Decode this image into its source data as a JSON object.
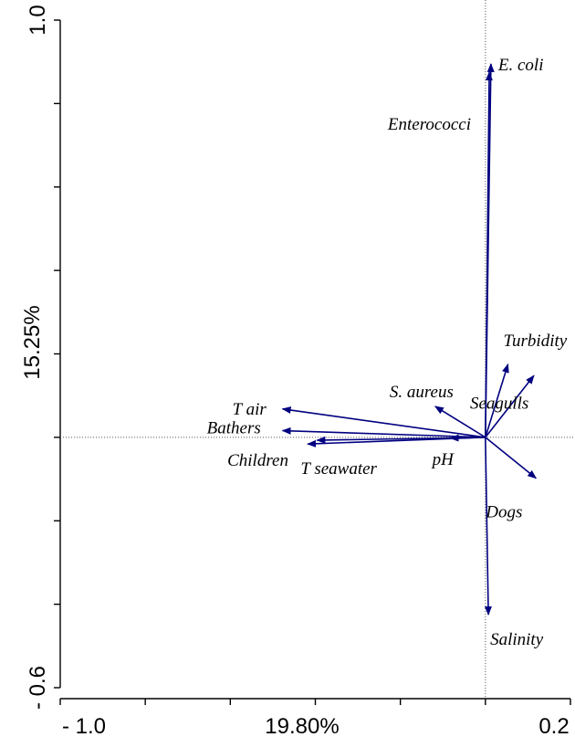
{
  "chart_data": {
    "type": "biplot",
    "xlabel": "19.80%",
    "ylabel": "15.25%",
    "x_tick_labels": [
      "- 1.0",
      "0.2"
    ],
    "y_tick_labels": [
      "- 0.6",
      "1.0"
    ],
    "xlim": [
      -1.0,
      0.2
    ],
    "ylim": [
      -0.6,
      1.0
    ],
    "origin": [
      0.0,
      0.0
    ],
    "arrow_color": "#000080",
    "vectors": [
      {
        "name": "E. coli",
        "x": 0.013,
        "y": 0.895
      },
      {
        "name": "Enterococci",
        "x": 0.009,
        "y": 0.875
      },
      {
        "name": "Turbidity",
        "x": 0.053,
        "y": 0.175
      },
      {
        "name": "Seagulls",
        "x": 0.114,
        "y": 0.148
      },
      {
        "name": "S. aureus",
        "x": -0.118,
        "y": 0.074
      },
      {
        "name": "T air",
        "x": -0.477,
        "y": 0.068
      },
      {
        "name": "Bathers",
        "x": -0.477,
        "y": 0.016
      },
      {
        "name": "T seawater",
        "x": -0.396,
        "y": -0.007
      },
      {
        "name": "Children",
        "x": -0.418,
        "y": -0.016
      },
      {
        "name": "pH",
        "x": -0.082,
        "y": -0.002
      },
      {
        "name": "Dogs",
        "x": 0.119,
        "y": -0.098
      },
      {
        "name": "Salinity",
        "x": 0.007,
        "y": -0.425
      }
    ]
  }
}
